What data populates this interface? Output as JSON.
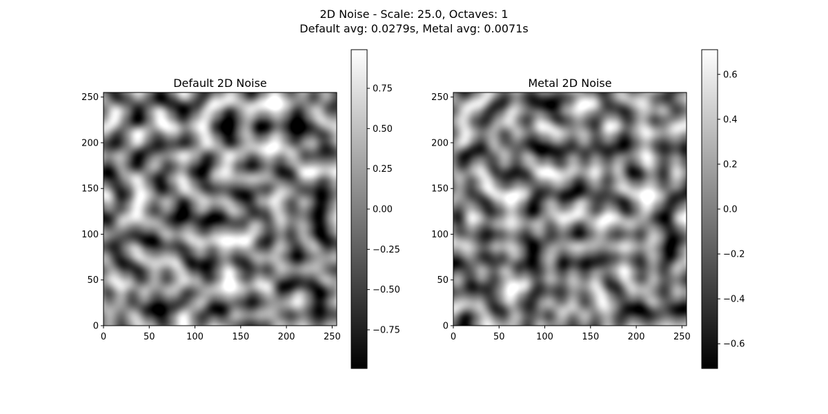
{
  "figure": {
    "title_line1": "2D Noise - Scale: 25.0, Octaves: 1",
    "title_line2": "Default avg: 0.0279s, Metal avg: 0.0071s"
  },
  "chart_data": [
    {
      "type": "heatmap",
      "title": "Default 2D Noise",
      "colormap": "gray",
      "xlim": [
        0,
        255
      ],
      "ylim": [
        0,
        255
      ],
      "xticks": [
        0,
        50,
        100,
        150,
        200,
        250
      ],
      "yticks": [
        0,
        50,
        100,
        150,
        200,
        250
      ],
      "xtick_labels": [
        "0",
        "50",
        "100",
        "150",
        "200",
        "250"
      ],
      "ytick_labels": [
        "0",
        "50",
        "100",
        "150",
        "200",
        "250"
      ],
      "colorbar": {
        "vmin": -0.99,
        "vmax": 0.99,
        "ticks": [
          -0.75,
          -0.5,
          -0.25,
          0.0,
          0.25,
          0.5,
          0.75
        ],
        "tick_labels": [
          "−0.75",
          "−0.50",
          "−0.25",
          "0.00",
          "0.25",
          "0.50",
          "0.75"
        ]
      },
      "noise_scale": 25.0,
      "octaves": 1
    },
    {
      "type": "heatmap",
      "title": "Metal 2D Noise",
      "colormap": "gray",
      "xlim": [
        0,
        255
      ],
      "ylim": [
        0,
        255
      ],
      "xticks": [
        0,
        50,
        100,
        150,
        200,
        250
      ],
      "yticks": [
        0,
        50,
        100,
        150,
        200,
        250
      ],
      "xtick_labels": [
        "0",
        "50",
        "100",
        "150",
        "200",
        "250"
      ],
      "ytick_labels": [
        "0",
        "50",
        "100",
        "150",
        "200",
        "250"
      ],
      "colorbar": {
        "vmin": -0.71,
        "vmax": 0.71,
        "ticks": [
          -0.6,
          -0.4,
          -0.2,
          0.0,
          0.2,
          0.4,
          0.6
        ],
        "tick_labels": [
          "−0.6",
          "−0.4",
          "−0.2",
          "0.0",
          "0.2",
          "0.4",
          "0.6"
        ]
      },
      "noise_scale": 25.0,
      "octaves": 1
    }
  ]
}
